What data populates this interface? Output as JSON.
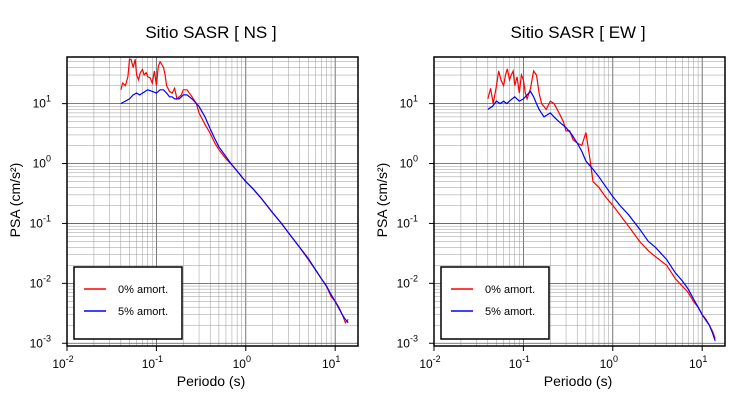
{
  "chart_data": [
    {
      "type": "line",
      "title": "Sitio SASR [ NS ]",
      "xlabel": "Periodo (s)",
      "ylabel": "PSA (cm/s²)",
      "xscale": "log",
      "yscale": "log",
      "xlim": [
        0.01,
        18
      ],
      "ylim": [
        0.0009,
        60
      ],
      "grid": true,
      "legend_position": "bottom-left",
      "series": [
        {
          "name": "0% amort.",
          "color": "#ff0000",
          "x": [
            0.04,
            0.042,
            0.045,
            0.048,
            0.05,
            0.052,
            0.055,
            0.058,
            0.06,
            0.063,
            0.066,
            0.07,
            0.073,
            0.077,
            0.08,
            0.085,
            0.09,
            0.095,
            0.1,
            0.105,
            0.11,
            0.12,
            0.125,
            0.13,
            0.14,
            0.15,
            0.16,
            0.17,
            0.18,
            0.19,
            0.2,
            0.22,
            0.25,
            0.28,
            0.3,
            0.35,
            0.4,
            0.45,
            0.5,
            0.6,
            0.7,
            0.8,
            0.9,
            1.0,
            1.2,
            1.5,
            2.0,
            2.5,
            3.0,
            4.0,
            5.0,
            6.0,
            7.0,
            8.0,
            9.0,
            10.0,
            11.0,
            12.0,
            13.0,
            14.0
          ],
          "y": [
            17,
            22,
            20,
            28,
            55,
            55,
            40,
            55,
            30,
            25,
            33,
            37,
            30,
            33,
            28,
            27,
            22,
            35,
            20,
            42,
            50,
            40,
            30,
            20,
            16,
            15,
            18,
            12,
            13,
            14,
            17,
            17,
            13,
            10,
            7,
            4.5,
            3.2,
            2.2,
            1.7,
            1.2,
            0.95,
            0.75,
            0.6,
            0.5,
            0.38,
            0.26,
            0.15,
            0.1,
            0.07,
            0.04,
            0.025,
            0.017,
            0.012,
            0.009,
            0.006,
            0.005,
            0.004,
            0.003,
            0.0022,
            0.0025
          ]
        },
        {
          "name": "5% amort.",
          "color": "#0000ff",
          "x": [
            0.04,
            0.045,
            0.05,
            0.055,
            0.06,
            0.065,
            0.07,
            0.08,
            0.09,
            0.1,
            0.11,
            0.12,
            0.13,
            0.14,
            0.15,
            0.16,
            0.18,
            0.2,
            0.22,
            0.25,
            0.3,
            0.35,
            0.4,
            0.45,
            0.5,
            0.6,
            0.7,
            0.8,
            0.9,
            1.0,
            1.2,
            1.5,
            2.0,
            2.5,
            3.0,
            4.0,
            5.0,
            6.0,
            7.0,
            8.0,
            9.0,
            10.0,
            11.0,
            12.0,
            13.0,
            14.0
          ],
          "y": [
            10,
            11,
            12,
            14,
            15,
            14,
            15,
            17,
            16,
            15,
            17,
            17,
            15,
            13,
            13,
            12,
            12,
            14,
            14,
            12,
            9,
            6,
            3.8,
            2.6,
            1.9,
            1.3,
            0.95,
            0.75,
            0.6,
            0.5,
            0.38,
            0.26,
            0.15,
            0.1,
            0.07,
            0.04,
            0.026,
            0.017,
            0.012,
            0.009,
            0.0065,
            0.005,
            0.0038,
            0.003,
            0.0025,
            0.0022
          ]
        }
      ]
    },
    {
      "type": "line",
      "title": "Sitio SASR [ EW ]",
      "xlabel": "Periodo (s)",
      "ylabel": "PSA (cm/s²)",
      "xscale": "log",
      "yscale": "log",
      "xlim": [
        0.01,
        18
      ],
      "ylim": [
        0.0009,
        60
      ],
      "grid": true,
      "legend_position": "bottom-left",
      "series": [
        {
          "name": "0% amort.",
          "color": "#ff0000",
          "x": [
            0.04,
            0.043,
            0.046,
            0.05,
            0.053,
            0.056,
            0.06,
            0.063,
            0.066,
            0.07,
            0.073,
            0.077,
            0.08,
            0.085,
            0.09,
            0.095,
            0.1,
            0.105,
            0.11,
            0.12,
            0.13,
            0.14,
            0.15,
            0.16,
            0.18,
            0.2,
            0.22,
            0.25,
            0.28,
            0.3,
            0.33,
            0.36,
            0.4,
            0.45,
            0.5,
            0.55,
            0.6,
            0.7,
            0.8,
            0.9,
            1.0,
            1.2,
            1.5,
            2.0,
            2.5,
            3.0,
            4.0,
            5.0,
            6.0,
            7.0,
            8.0,
            9.0,
            10.0,
            11.0,
            12.0,
            13.0,
            14.0
          ],
          "y": [
            12,
            18,
            10,
            20,
            35,
            25,
            20,
            30,
            38,
            25,
            30,
            35,
            20,
            28,
            15,
            30,
            25,
            15,
            12,
            18,
            35,
            30,
            15,
            10,
            8,
            11,
            10,
            7,
            5,
            3.5,
            3.5,
            2.5,
            2.2,
            2.0,
            3.3,
            1.3,
            0.5,
            0.4,
            0.3,
            0.24,
            0.2,
            0.14,
            0.09,
            0.05,
            0.035,
            0.028,
            0.02,
            0.012,
            0.009,
            0.007,
            0.005,
            0.004,
            0.003,
            0.0024,
            0.002,
            0.0016,
            0.0012
          ]
        },
        {
          "name": "5% amort.",
          "color": "#0000ff",
          "x": [
            0.04,
            0.045,
            0.05,
            0.055,
            0.06,
            0.065,
            0.07,
            0.08,
            0.09,
            0.1,
            0.11,
            0.12,
            0.13,
            0.14,
            0.15,
            0.17,
            0.2,
            0.22,
            0.25,
            0.3,
            0.35,
            0.4,
            0.45,
            0.5,
            0.6,
            0.7,
            0.8,
            0.9,
            1.0,
            1.2,
            1.5,
            2.0,
            2.5,
            3.0,
            4.0,
            5.0,
            6.0,
            7.0,
            8.0,
            9.0,
            10.0,
            11.0,
            12.0,
            13.0,
            14.0
          ],
          "y": [
            8,
            9,
            11,
            10,
            11,
            10,
            11,
            13,
            11,
            12,
            14,
            16,
            13,
            10,
            8,
            6,
            7,
            6,
            5,
            4,
            3,
            2.2,
            1.6,
            1.1,
            0.8,
            0.6,
            0.45,
            0.35,
            0.28,
            0.2,
            0.14,
            0.08,
            0.05,
            0.04,
            0.025,
            0.015,
            0.011,
            0.008,
            0.0055,
            0.004,
            0.003,
            0.0025,
            0.002,
            0.0015,
            0.0011
          ]
        }
      ]
    }
  ]
}
